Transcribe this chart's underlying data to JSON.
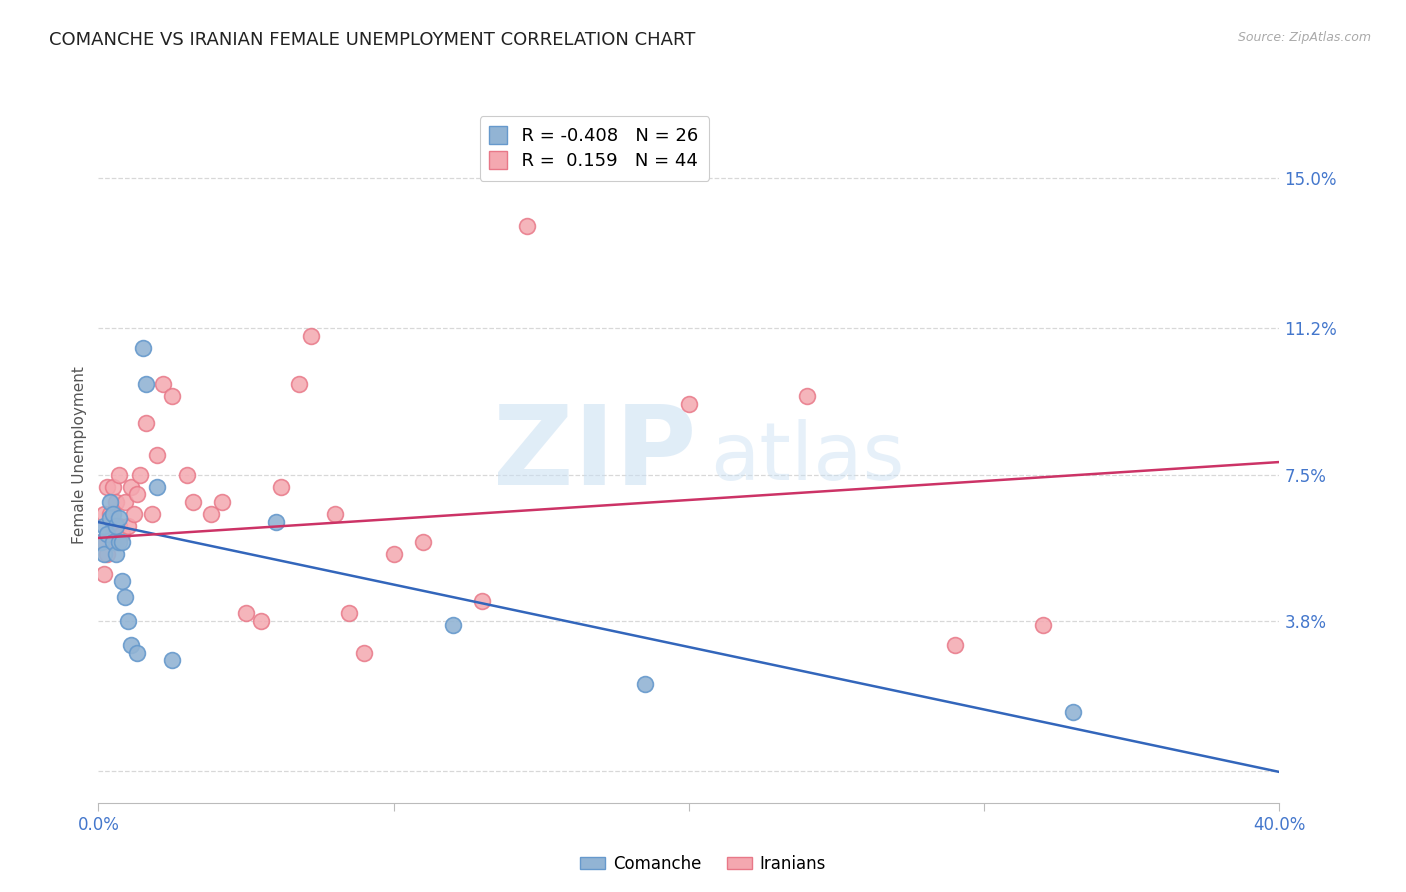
{
  "title": "COMANCHE VS IRANIAN FEMALE UNEMPLOYMENT CORRELATION CHART",
  "source": "Source: ZipAtlas.com",
  "ylabel": "Female Unemployment",
  "xlim": [
    0.0,
    0.4
  ],
  "ylim": [
    -0.008,
    0.168
  ],
  "ytick_positions": [
    0.0,
    0.038,
    0.075,
    0.112,
    0.15
  ],
  "ytick_labels": [
    "",
    "3.8%",
    "7.5%",
    "11.2%",
    "15.0%"
  ],
  "background_color": "#ffffff",
  "grid_color": "#d8d8d8",
  "comanche_x": [
    0.001,
    0.002,
    0.002,
    0.003,
    0.004,
    0.004,
    0.005,
    0.005,
    0.006,
    0.006,
    0.007,
    0.007,
    0.008,
    0.008,
    0.009,
    0.01,
    0.011,
    0.013,
    0.015,
    0.016,
    0.02,
    0.025,
    0.06,
    0.12,
    0.185,
    0.33
  ],
  "comanche_y": [
    0.058,
    0.062,
    0.055,
    0.06,
    0.064,
    0.068,
    0.058,
    0.065,
    0.062,
    0.055,
    0.058,
    0.064,
    0.058,
    0.048,
    0.044,
    0.038,
    0.032,
    0.03,
    0.107,
    0.098,
    0.072,
    0.028,
    0.063,
    0.037,
    0.022,
    0.015
  ],
  "iranian_x": [
    0.001,
    0.002,
    0.002,
    0.003,
    0.003,
    0.004,
    0.005,
    0.005,
    0.006,
    0.006,
    0.007,
    0.007,
    0.008,
    0.009,
    0.01,
    0.011,
    0.012,
    0.013,
    0.014,
    0.016,
    0.018,
    0.02,
    0.022,
    0.025,
    0.03,
    0.032,
    0.038,
    0.042,
    0.05,
    0.055,
    0.062,
    0.068,
    0.072,
    0.08,
    0.085,
    0.09,
    0.1,
    0.11,
    0.13,
    0.145,
    0.2,
    0.24,
    0.29,
    0.32
  ],
  "iranian_y": [
    0.058,
    0.065,
    0.05,
    0.055,
    0.072,
    0.065,
    0.06,
    0.072,
    0.058,
    0.068,
    0.062,
    0.075,
    0.06,
    0.068,
    0.062,
    0.072,
    0.065,
    0.07,
    0.075,
    0.088,
    0.065,
    0.08,
    0.098,
    0.095,
    0.075,
    0.068,
    0.065,
    0.068,
    0.04,
    0.038,
    0.072,
    0.098,
    0.11,
    0.065,
    0.04,
    0.03,
    0.055,
    0.058,
    0.043,
    0.138,
    0.093,
    0.095,
    0.032,
    0.037
  ],
  "comanche_color": "#92b4d4",
  "iranian_color": "#f4a8b0",
  "comanche_edge_color": "#6699cc",
  "iranian_edge_color": "#e87888",
  "comanche_line_color": "#3366bb",
  "iranian_line_color": "#cc3366",
  "legend_r_comanche": "R = -0.408",
  "legend_n_comanche": "N = 26",
  "legend_r_iranian": "R =  0.159",
  "legend_n_iranian": "N = 44",
  "legend_label_comanche": "Comanche",
  "legend_label_iranian": "Iranians",
  "comanche_intercept": 0.063,
  "comanche_slope": -0.158,
  "iranian_intercept": 0.059,
  "iranian_slope": 0.048
}
